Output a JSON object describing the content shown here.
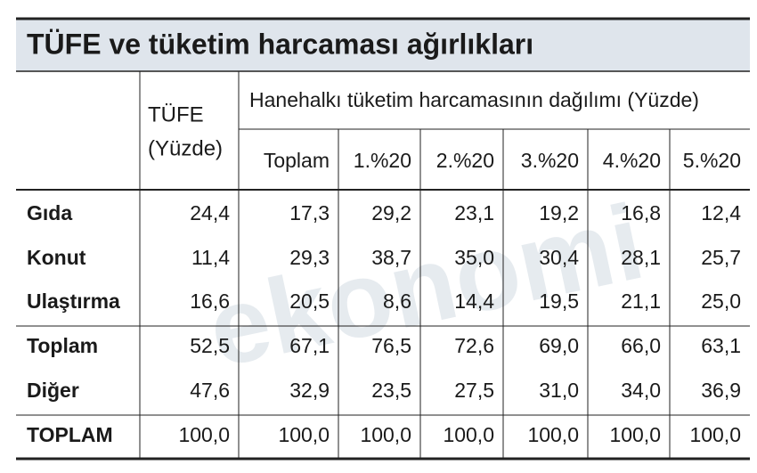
{
  "title": "TÜFE ve tüketim harcaması ağırlıkları",
  "watermark": "ekonomi",
  "table": {
    "header": {
      "tufe": [
        "TÜFE",
        "(Yüzde)"
      ],
      "group": "Hanehalkı tüketim harcamasının dağılımı (Yüzde)",
      "columns": [
        "Toplam",
        "1.%20",
        "2.%20",
        "3.%20",
        "4.%20",
        "5.%20"
      ]
    },
    "rows": [
      {
        "label": "Gıda",
        "values": [
          "24,4",
          "17,3",
          "29,2",
          "23,1",
          "19,2",
          "16,8",
          "12,4"
        ]
      },
      {
        "label": "Konut",
        "values": [
          "11,4",
          "29,3",
          "38,7",
          "35,0",
          "30,4",
          "28,1",
          "25,7"
        ]
      },
      {
        "label": "Ulaştırma",
        "values": [
          "16,6",
          "20,5",
          "8,6",
          "14,4",
          "19,5",
          "21,1",
          "25,0"
        ]
      },
      {
        "label": "Toplam",
        "values": [
          "52,5",
          "67,1",
          "76,5",
          "72,6",
          "69,0",
          "66,0",
          "63,1"
        ]
      },
      {
        "label": "Diğer",
        "values": [
          "47,6",
          "32,9",
          "23,5",
          "27,5",
          "31,0",
          "34,0",
          "36,9"
        ]
      },
      {
        "label": "TOPLAM",
        "values": [
          "100,0",
          "100,0",
          "100,0",
          "100,0",
          "100,0",
          "100,0",
          "100,0"
        ]
      }
    ]
  }
}
